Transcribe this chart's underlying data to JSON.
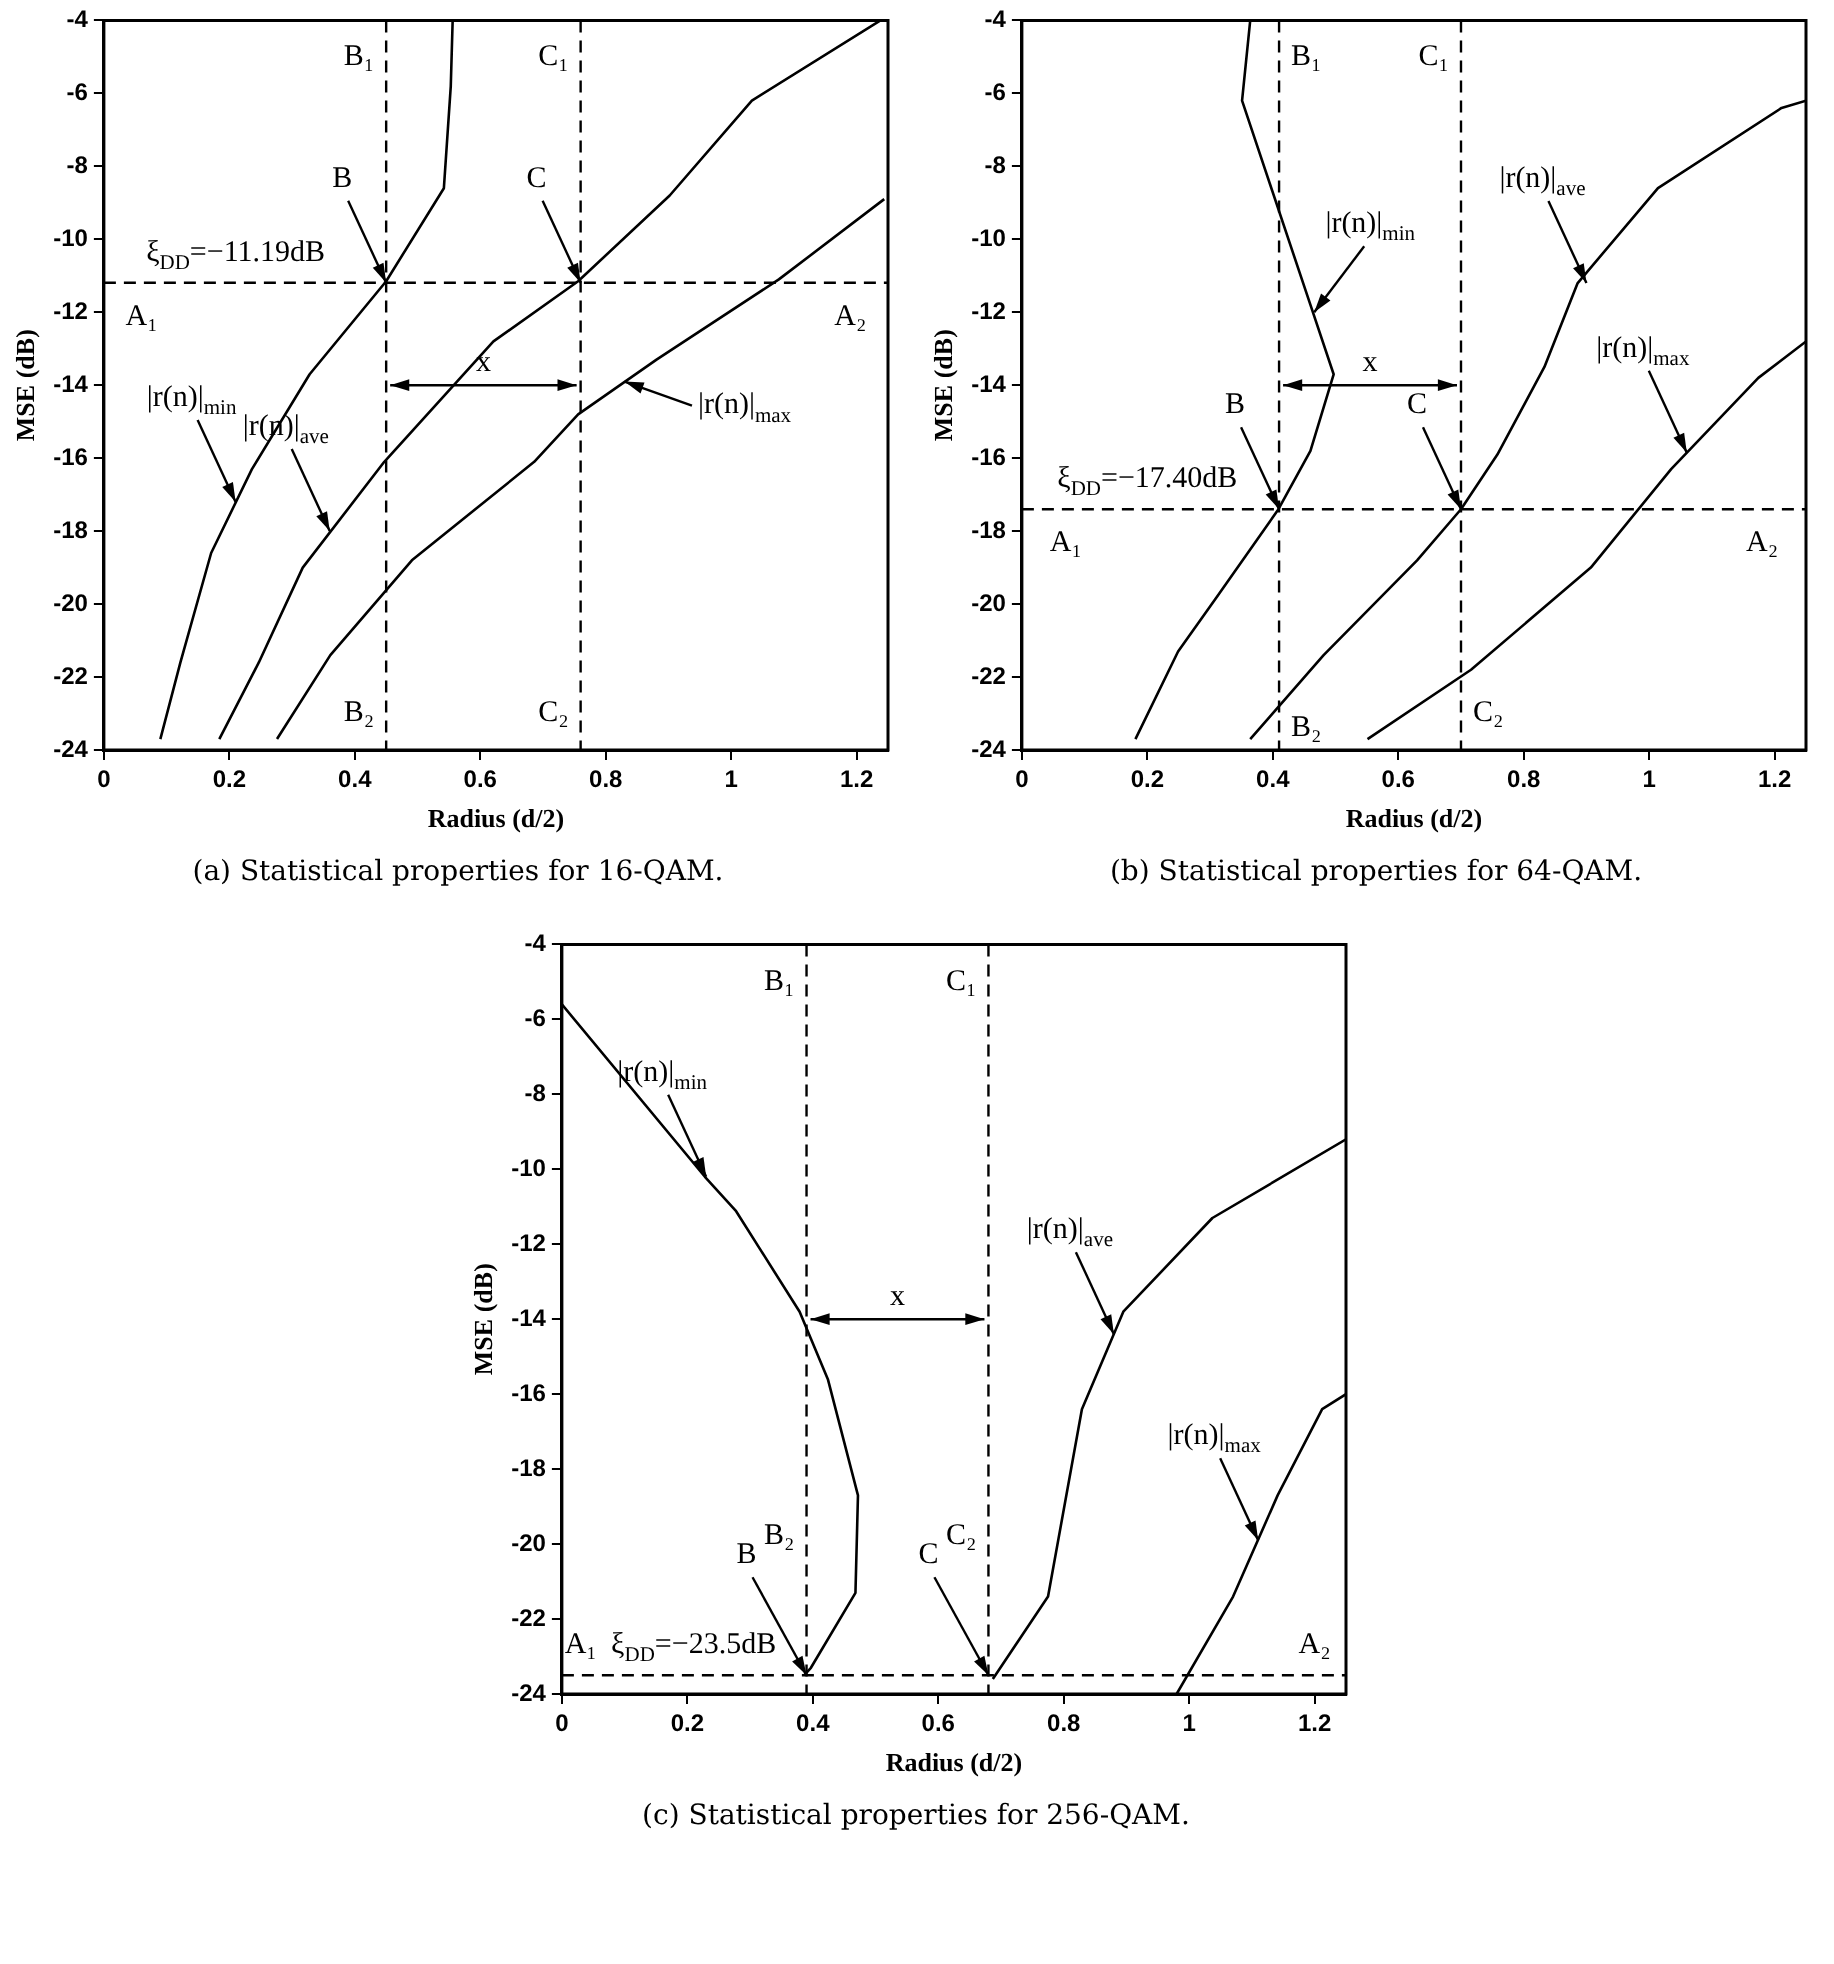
{
  "chart_data": [
    {
      "type": "line",
      "xlabel": "Radius (d/2)",
      "ylabel": "MSE (dB)",
      "xlim": [
        0,
        1.25
      ],
      "ylim": [
        -24,
        -4
      ],
      "xticks": [
        0,
        0.2,
        0.4,
        0.6,
        0.8,
        1,
        1.2
      ],
      "yticks": [
        -24,
        -22,
        -20,
        -18,
        -16,
        -14,
        -12,
        -10,
        -8,
        -6,
        -4
      ],
      "grid": false,
      "legend": false,
      "marker": "none",
      "series": [
        {
          "color": "#000000",
          "x": [
            0.09,
            0.122,
            0.171,
            0.236,
            0.328,
            0.45,
            0.542,
            0.553,
            0.556
          ],
          "values": [
            -23.7,
            -21.6,
            -18.6,
            -16.3,
            -13.7,
            -11.15,
            -8.6,
            -5.8,
            -4
          ]
        },
        {
          "color": "#000000",
          "x": [
            0.184,
            0.247,
            0.317,
            0.447,
            0.621,
            0.756,
            0.902,
            1.033,
            1.238
          ],
          "values": [
            -23.7,
            -21.6,
            -19,
            -16.1,
            -12.8,
            -11.15,
            -8.8,
            -6.2,
            -4
          ]
        },
        {
          "color": "#000000",
          "x": [
            0.276,
            0.361,
            0.491,
            0.686,
            0.756,
            0.881,
            1.076,
            1.244
          ],
          "values": [
            -23.7,
            -21.4,
            -18.8,
            -16.1,
            -14.8,
            -13.3,
            -11.1,
            -8.9
          ]
        }
      ],
      "ref_lines": [
        {
          "axis": "x",
          "value": 0.45,
          "line_style": "dashed"
        },
        {
          "axis": "x",
          "value": 0.76,
          "line_style": "dashed"
        },
        {
          "axis": "y",
          "value": -11.19,
          "line_style": "dashed"
        }
      ],
      "title": "(a) Statistical properties for 16-QAM.",
      "annotations": [
        {
          "text": "B₁",
          "x": 0.45,
          "y": -5
        },
        {
          "text": "C₁",
          "x": 0.76,
          "y": -5
        },
        {
          "text": "B₂",
          "x": 0.45,
          "y": -23
        },
        {
          "text": "C₂",
          "x": 0.76,
          "y": -23
        },
        {
          "text": "A₁",
          "x": 0.06,
          "y": -11.19
        },
        {
          "text": "A₂",
          "x": 1.19,
          "y": -11.19
        },
        {
          "text": "ξ$_{DD}$=−11.19dB",
          "x": 0.21,
          "y": -11.19
        },
        {
          "text": "B",
          "x": 0.45,
          "y": -11.19
        },
        {
          "text": "C",
          "x": 0.76,
          "y": -11.19
        },
        {
          "text": "|r(n)|$_{min}$",
          "x": 0.21,
          "y": -17.2
        },
        {
          "text": "|r(n)|$_{ave}$",
          "x": 0.36,
          "y": -18
        },
        {
          "text": "|r(n)|$_{max}$",
          "x": 0.83,
          "y": -13.9
        },
        "x"
      ]
    },
    {
      "type": "line",
      "xlabel": "Radius (d/2)",
      "ylabel": "MSE (dB)",
      "xlim": [
        0,
        1.25
      ],
      "ylim": [
        -24,
        -4
      ],
      "xticks": [
        0,
        0.2,
        0.4,
        0.6,
        0.8,
        1,
        1.2
      ],
      "yticks": [
        -24,
        -22,
        -20,
        -18,
        -16,
        -14,
        -12,
        -10,
        -8,
        -6,
        -4
      ],
      "grid": false,
      "legend": false,
      "marker": "none",
      "series": [
        {
          "color": "#000000",
          "x": [
            0.181,
            0.249,
            0.311,
            0.409,
            0.46,
            0.497,
            0.46,
            0.351,
            0.364
          ],
          "values": [
            -23.7,
            -21.3,
            -19.8,
            -17.4,
            -15.8,
            -13.7,
            -11.8,
            -6.2,
            -4
          ]
        },
        {
          "color": "#000000",
          "x": [
            0.364,
            0.481,
            0.63,
            0.7,
            0.758,
            0.833,
            0.886,
            1.014,
            1.211,
            1.25
          ],
          "values": [
            -23.7,
            -21.4,
            -18.8,
            -17.4,
            -15.9,
            -13.5,
            -11.2,
            -8.6,
            -6.4,
            -6.2
          ]
        },
        {
          "color": "#000000",
          "x": [
            0.551,
            0.716,
            0.907,
            1.035,
            1.174,
            1.25
          ],
          "values": [
            -23.7,
            -21.8,
            -19,
            -16.3,
            -13.8,
            -12.8
          ]
        }
      ],
      "ref_lines": [
        {
          "axis": "x",
          "value": 0.41,
          "line_style": "dashed"
        },
        {
          "axis": "x",
          "value": 0.7,
          "line_style": "dashed"
        },
        {
          "axis": "y",
          "value": -17.4,
          "line_style": "dashed"
        }
      ],
      "title": "(b) Statistical properties for 64-QAM.",
      "annotations": [
        {
          "text": "B₁",
          "x": 0.41,
          "y": -5
        },
        {
          "text": "C₁",
          "x": 0.7,
          "y": -5
        },
        {
          "text": "B₂",
          "x": 0.41,
          "y": -23.4
        },
        {
          "text": "C₂",
          "x": 0.7,
          "y": -23
        },
        {
          "text": "A₁",
          "x": 0.07,
          "y": -17.4
        },
        {
          "text": "A₂",
          "x": 1.18,
          "y": -17.4
        },
        {
          "text": "ξ$_{DD}$=−17.40dB",
          "x": 0.2,
          "y": -17.4
        },
        {
          "text": "B",
          "x": 0.41,
          "y": -17.4
        },
        {
          "text": "C",
          "x": 0.7,
          "y": -17.4
        },
        {
          "text": "|r(n)|$_{min}$",
          "x": 0.466,
          "y": -12
        },
        {
          "text": "|r(n)|$_{ave}$",
          "x": 0.9,
          "y": -11.2
        },
        {
          "text": "|r(n)|$_{max}$",
          "x": 1.06,
          "y": -15.85
        },
        "x"
      ]
    },
    {
      "type": "line",
      "xlabel": "Radius (d/2)",
      "ylabel": "MSE (dB)",
      "xlim": [
        0,
        1.25
      ],
      "ylim": [
        -24,
        -4
      ],
      "xticks": [
        0,
        0.2,
        0.4,
        0.6,
        0.8,
        1,
        1.2
      ],
      "yticks": [
        -24,
        -22,
        -20,
        -18,
        -16,
        -14,
        -12,
        -10,
        -8,
        -6,
        -4
      ],
      "grid": false,
      "legend": false,
      "marker": "none",
      "series": [
        {
          "color": "#000000",
          "x": [
            0,
            0.228,
            0.277,
            0.379,
            0.424,
            0.472,
            0.468,
            0.397,
            0.386
          ],
          "values": [
            -5.6,
            -10.2,
            -11.1,
            -13.8,
            -15.6,
            -18.7,
            -21.3,
            -23.3,
            -23.5
          ]
        },
        {
          "color": "#000000",
          "x": [
            0.687,
            0.775,
            0.829,
            0.895,
            1.037,
            1.25
          ],
          "values": [
            -23.6,
            -21.4,
            -16.4,
            -13.8,
            -11.3,
            -9.2
          ]
        },
        {
          "color": "#000000",
          "x": [
            0.98,
            1.07,
            1.141,
            1.212,
            1.25
          ],
          "values": [
            -24,
            -21.4,
            -18.7,
            -16.4,
            -16
          ]
        }
      ],
      "ref_lines": [
        {
          "axis": "x",
          "value": 0.39,
          "line_style": "dashed"
        },
        {
          "axis": "x",
          "value": 0.68,
          "line_style": "dashed"
        },
        {
          "axis": "y",
          "value": -23.5,
          "line_style": "dashed"
        }
      ],
      "title": "(c) Statistical properties for 256-QAM.",
      "annotations": [
        {
          "text": "B₁",
          "x": 0.39,
          "y": -5
        },
        {
          "text": "C₁",
          "x": 0.68,
          "y": -5
        },
        {
          "text": "B₂",
          "x": 0.39,
          "y": -19.8
        },
        {
          "text": "C₂",
          "x": 0.68,
          "y": -19.8
        },
        {
          "text": "A₁",
          "x": 0.03,
          "y": -23.5
        },
        {
          "text": "A₂",
          "x": 1.2,
          "y": -23.5
        },
        {
          "text": "ξ$_{DD}$=−23.5dB",
          "x": 0.21,
          "y": -23.5
        },
        {
          "text": "B",
          "x": 0.39,
          "y": -23.5
        },
        {
          "text": "C",
          "x": 0.68,
          "y": -23.5
        },
        {
          "text": "|r(n)|$_{min}$",
          "x": 0.23,
          "y": -10.2
        },
        {
          "text": "|r(n)|$_{ave}$",
          "x": 0.88,
          "y": -14.4
        },
        {
          "text": "|r(n)|$_{max}$",
          "x": 1.11,
          "y": -19.9
        },
        "x"
      ]
    }
  ]
}
